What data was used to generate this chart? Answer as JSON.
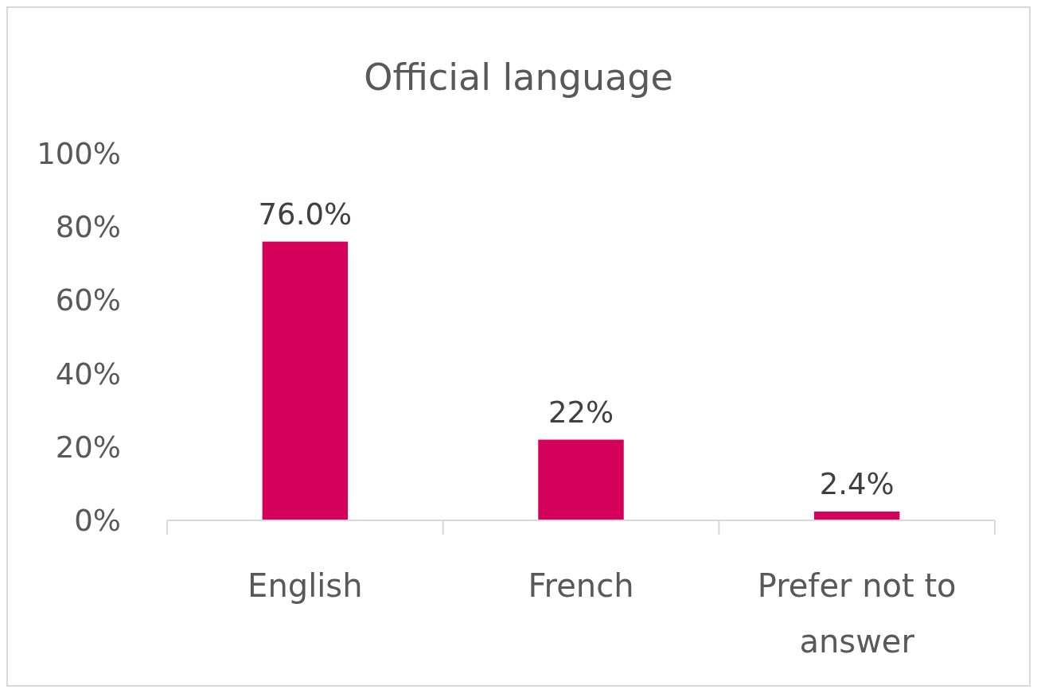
{
  "chart_data": {
    "type": "bar",
    "title": "Official language",
    "categories": [
      "English",
      "French",
      "Prefer not to answer"
    ],
    "values": [
      76.0,
      22,
      2.4
    ],
    "value_labels": [
      "76.0%",
      "22%",
      "2.4%"
    ],
    "color": "#d5005a",
    "ylim": [
      0,
      100
    ],
    "yticks": [
      {
        "value": 0,
        "label": "0%"
      },
      {
        "value": 20,
        "label": "20%"
      },
      {
        "value": 40,
        "label": "40%"
      },
      {
        "value": 60,
        "label": "60%"
      },
      {
        "value": 80,
        "label": "80%"
      },
      {
        "value": 100,
        "label": "100%"
      }
    ],
    "grid": false
  }
}
